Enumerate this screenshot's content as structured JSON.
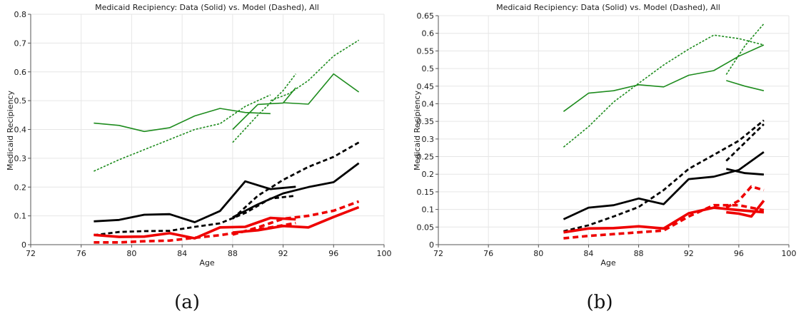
{
  "chart_data": [
    {
      "type": "line",
      "title": "Medicaid Recipiency: Data (Solid) vs. Model (Dashed), All",
      "xlabel": "Age",
      "ylabel": "Medicaid Recipiency",
      "caption": "(a)",
      "xlim": [
        72,
        100
      ],
      "ylim": [
        0,
        0.8
      ],
      "xticks": [
        "72",
        "76",
        "80",
        "84",
        "88",
        "92",
        "96",
        "100"
      ],
      "yticks": [
        "0",
        "0.1",
        "0.2",
        "0.3",
        "0.4",
        "0.5",
        "0.6",
        "0.7",
        "0.8"
      ],
      "grid": true,
      "series": [
        {
          "style": "solid",
          "color": "#1e8c1e",
          "width": 1.6,
          "x": [
            77,
            79,
            81,
            83,
            85,
            87,
            89,
            91
          ],
          "y": [
            0.422,
            0.414,
            0.393,
            0.406,
            0.447,
            0.473,
            0.459,
            0.455
          ]
        },
        {
          "style": "solid",
          "color": "#1e8c1e",
          "width": 1.6,
          "x": [
            88,
            90,
            92,
            93
          ],
          "y": [
            0.4,
            0.487,
            0.492,
            0.545
          ]
        },
        {
          "style": "solid",
          "color": "#1e8c1e",
          "width": 1.6,
          "x": [
            92,
            94,
            96,
            98
          ],
          "y": [
            0.493,
            0.488,
            0.593,
            0.53
          ]
        },
        {
          "style": "dotted",
          "color": "#1e8c1e",
          "width": 1.6,
          "x": [
            77,
            79,
            81,
            83,
            85,
            87,
            89,
            91
          ],
          "y": [
            0.255,
            0.295,
            0.33,
            0.365,
            0.4,
            0.42,
            0.48,
            0.52
          ]
        },
        {
          "style": "dotted",
          "color": "#1e8c1e",
          "width": 1.6,
          "x": [
            88,
            90,
            92,
            93
          ],
          "y": [
            0.355,
            0.45,
            0.535,
            0.593
          ]
        },
        {
          "style": "dotted",
          "color": "#1e8c1e",
          "width": 1.6,
          "x": [
            91,
            92.5,
            94,
            96,
            98
          ],
          "y": [
            0.5,
            0.525,
            0.57,
            0.655,
            0.71
          ]
        },
        {
          "style": "solid",
          "color": "#000000",
          "width": 2.8,
          "x": [
            77,
            79,
            81,
            83,
            85,
            87,
            89,
            91,
            93
          ],
          "y": [
            0.081,
            0.086,
            0.104,
            0.106,
            0.078,
            0.117,
            0.22,
            0.193,
            0.201
          ]
        },
        {
          "style": "solid",
          "color": "#000000",
          "width": 2.8,
          "x": [
            88,
            90,
            92,
            94,
            96,
            98
          ],
          "y": [
            0.095,
            0.14,
            0.178,
            0.2,
            0.217,
            0.283
          ]
        },
        {
          "style": "dashed",
          "color": "#000000",
          "width": 2.8,
          "x": [
            77,
            79,
            81,
            83,
            85,
            87,
            89,
            91,
            93
          ],
          "y": [
            0.033,
            0.044,
            0.047,
            0.048,
            0.062,
            0.074,
            0.11,
            0.16,
            0.17
          ]
        },
        {
          "style": "dashed",
          "color": "#000000",
          "width": 2.8,
          "x": [
            88,
            90,
            92,
            94,
            96,
            98
          ],
          "y": [
            0.09,
            0.17,
            0.225,
            0.27,
            0.305,
            0.355
          ]
        },
        {
          "style": "solid",
          "color": "#ee0000",
          "width": 3.6,
          "x": [
            77,
            79,
            81,
            83,
            85,
            87,
            89,
            91,
            93
          ],
          "y": [
            0.034,
            0.027,
            0.028,
            0.04,
            0.022,
            0.06,
            0.062,
            0.093,
            0.088
          ]
        },
        {
          "style": "solid",
          "color": "#ee0000",
          "width": 3.6,
          "x": [
            88,
            90,
            92,
            94,
            96,
            98
          ],
          "y": [
            0.042,
            0.05,
            0.065,
            0.06,
            0.096,
            0.13
          ]
        },
        {
          "style": "dashed",
          "color": "#ee0000",
          "width": 3.6,
          "x": [
            77,
            79,
            81,
            83,
            85,
            87,
            89,
            91,
            93
          ],
          "y": [
            0.008,
            0.008,
            0.012,
            0.014,
            0.024,
            0.033,
            0.046,
            0.06,
            0.075
          ]
        },
        {
          "style": "dashed",
          "color": "#ee0000",
          "width": 3.6,
          "x": [
            88,
            90,
            92,
            94,
            96,
            98
          ],
          "y": [
            0.035,
            0.06,
            0.09,
            0.1,
            0.118,
            0.15
          ]
        }
      ]
    },
    {
      "type": "line",
      "title": "Medicaid Recipiency: Data (Solid) vs. Model (Dashed), All",
      "xlabel": "Age",
      "ylabel": "Medicaid Recipiency",
      "caption": "(b)",
      "xlim": [
        72,
        100
      ],
      "ylim": [
        0,
        0.65
      ],
      "xticks": [
        "72",
        "76",
        "80",
        "84",
        "88",
        "92",
        "96",
        "100"
      ],
      "yticks": [
        "0",
        "0.05",
        "0.1",
        "0.15",
        "0.2",
        "0.25",
        "0.3",
        "0.35",
        "0.4",
        "0.45",
        "0.5",
        "0.55",
        "0.6",
        "0.65"
      ],
      "grid": true,
      "series": [
        {
          "style": "solid",
          "color": "#1e8c1e",
          "width": 1.6,
          "x": [
            82,
            84,
            86,
            88,
            90,
            92,
            94,
            96,
            98
          ],
          "y": [
            0.378,
            0.43,
            0.437,
            0.454,
            0.448,
            0.481,
            0.494,
            0.535,
            0.567
          ]
        },
        {
          "style": "solid",
          "color": "#1e8c1e",
          "width": 1.6,
          "x": [
            95,
            96.5,
            98
          ],
          "y": [
            0.466,
            0.45,
            0.437
          ]
        },
        {
          "style": "dotted",
          "color": "#1e8c1e",
          "width": 1.6,
          "x": [
            82,
            84,
            86,
            88,
            90,
            92,
            94,
            96,
            98
          ],
          "y": [
            0.277,
            0.335,
            0.405,
            0.458,
            0.51,
            0.555,
            0.595,
            0.585,
            0.567
          ]
        },
        {
          "style": "dotted",
          "color": "#1e8c1e",
          "width": 1.6,
          "x": [
            95,
            96.5,
            98
          ],
          "y": [
            0.483,
            0.565,
            0.627
          ]
        },
        {
          "style": "solid",
          "color": "#000000",
          "width": 2.8,
          "x": [
            82,
            84,
            86,
            88,
            90,
            92,
            94,
            96,
            98
          ],
          "y": [
            0.072,
            0.105,
            0.112,
            0.131,
            0.115,
            0.186,
            0.193,
            0.212,
            0.263
          ]
        },
        {
          "style": "solid",
          "color": "#000000",
          "width": 2.8,
          "x": [
            95,
            96.5,
            98
          ],
          "y": [
            0.215,
            0.203,
            0.199
          ]
        },
        {
          "style": "dashed",
          "color": "#000000",
          "width": 2.8,
          "x": [
            82,
            84,
            86,
            88,
            90,
            92,
            94,
            96,
            98
          ],
          "y": [
            0.038,
            0.055,
            0.08,
            0.107,
            0.155,
            0.215,
            0.255,
            0.295,
            0.353
          ]
        },
        {
          "style": "dashed",
          "color": "#000000",
          "width": 2.8,
          "x": [
            95,
            96.5,
            98
          ],
          "y": [
            0.238,
            0.29,
            0.342
          ]
        },
        {
          "style": "solid",
          "color": "#ee0000",
          "width": 3.6,
          "x": [
            82,
            84,
            86,
            88,
            90,
            92,
            94,
            96,
            98
          ],
          "y": [
            0.035,
            0.046,
            0.047,
            0.052,
            0.046,
            0.089,
            0.105,
            0.098,
            0.092
          ]
        },
        {
          "style": "solid",
          "color": "#ee0000",
          "width": 3.6,
          "x": [
            95,
            96,
            97,
            98
          ],
          "y": [
            0.092,
            0.088,
            0.08,
            0.125
          ]
        },
        {
          "style": "dashed",
          "color": "#ee0000",
          "width": 3.6,
          "x": [
            82,
            84,
            86,
            88,
            90,
            92,
            94,
            96,
            98
          ],
          "y": [
            0.018,
            0.025,
            0.03,
            0.035,
            0.04,
            0.08,
            0.112,
            0.112,
            0.098
          ]
        },
        {
          "style": "dashed",
          "color": "#ee0000",
          "width": 3.6,
          "x": [
            95,
            96,
            97,
            98
          ],
          "y": [
            0.105,
            0.125,
            0.165,
            0.155
          ]
        }
      ]
    }
  ]
}
